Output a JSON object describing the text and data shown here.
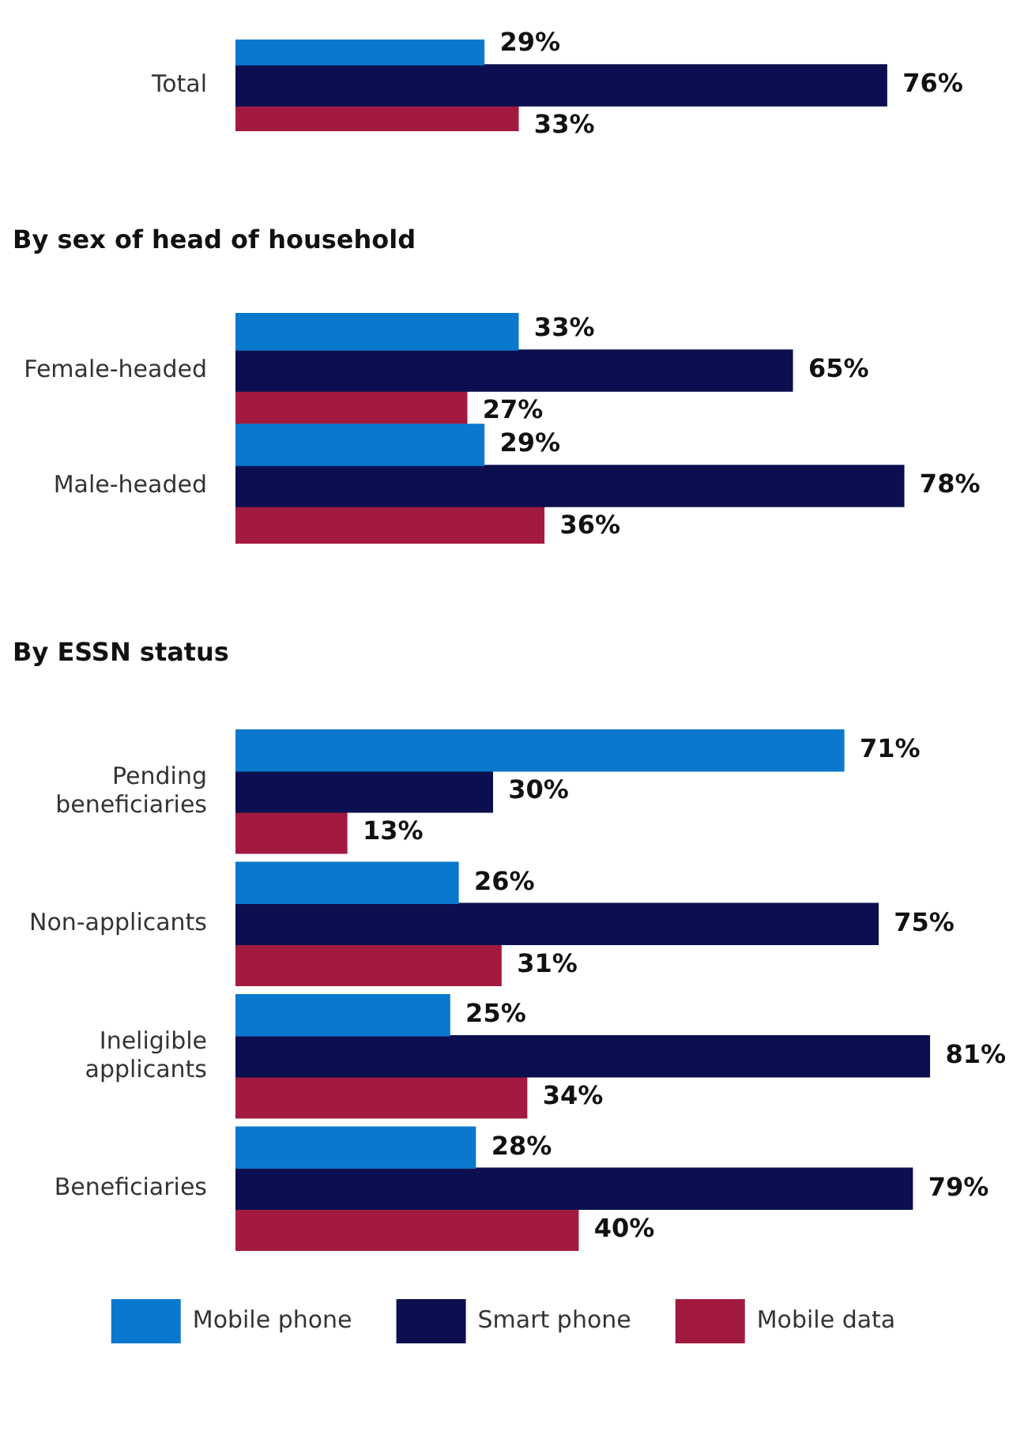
{
  "chart_data": [
    {
      "type": "bar",
      "orientation": "horizontal",
      "categories": [
        "Total"
      ],
      "xlim": [
        0,
        90
      ],
      "tick_labels": "y",
      "series": [
        {
          "color": "#0a78cc",
          "values": [
            29
          ],
          "value_labels": [
            "29%"
          ]
        },
        {
          "color": "#0b0f4f",
          "values": [
            76
          ],
          "value_labels": [
            "76%"
          ]
        },
        {
          "color": "#a21a40",
          "values": [
            33
          ],
          "value_labels": [
            "33%"
          ]
        }
      ]
    },
    {
      "type": "bar",
      "orientation": "horizontal",
      "title": "By sex of head of household",
      "categories": [
        "Female-headed",
        "Male-headed"
      ],
      "xlim": [
        0,
        90
      ],
      "tick_labels": "y",
      "series": [
        {
          "color": "#0a78cc",
          "values": [
            33,
            29
          ],
          "value_labels": [
            "33%",
            "29%"
          ]
        },
        {
          "color": "#0b0f4f",
          "values": [
            65,
            78
          ],
          "value_labels": [
            "65%",
            "78%"
          ]
        },
        {
          "color": "#a21a40",
          "values": [
            27,
            36
          ],
          "value_labels": [
            "27%",
            "36%"
          ]
        }
      ]
    },
    {
      "type": "bar",
      "orientation": "horizontal",
      "title": "By ESSN status",
      "categories": [
        "Pending beneficiaries",
        "Non-applicants",
        "Ineligible applicants",
        "Beneficiaries"
      ],
      "xlim": [
        0,
        90
      ],
      "tick_labels": "y",
      "legend": "bottom",
      "series": [
        {
          "name": "Mobile phone",
          "color": "#0a78cc",
          "values": [
            71,
            26,
            25,
            28
          ],
          "value_labels": [
            "71%",
            "26%",
            "25%",
            "28%"
          ]
        },
        {
          "name": "Smart phone",
          "color": "#0b0f4f",
          "values": [
            30,
            75,
            81,
            79
          ],
          "value_labels": [
            "30%",
            "75%",
            "81%",
            "79%"
          ]
        },
        {
          "name": "Mobile data",
          "color": "#a21a40",
          "values": [
            13,
            31,
            34,
            40
          ],
          "value_labels": [
            "13%",
            "31%",
            "34%",
            "40%"
          ]
        }
      ]
    }
  ]
}
